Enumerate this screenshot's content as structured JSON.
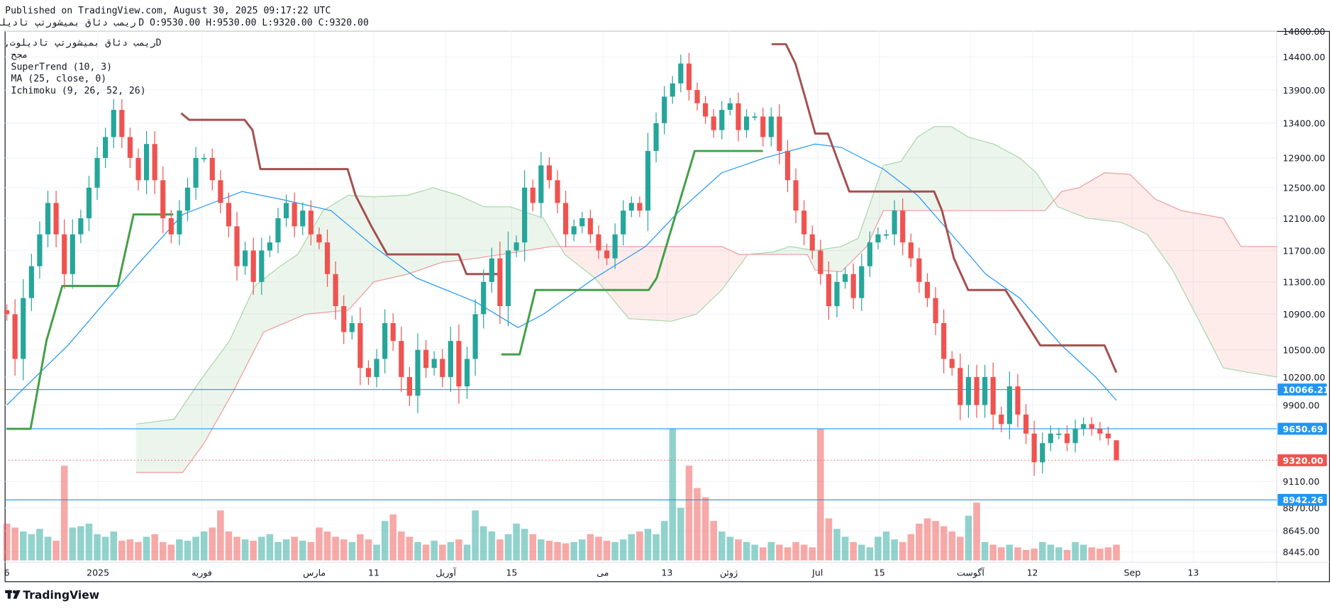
{
  "header": {
    "published": "Published on TradingView.com, August 30, 2025 09:17:22 UTC",
    "symbol": "ريمب دئاق بميشورتپ تاديلوت",
    "ohlc": "D O:9530.00 H:9530.00 L:9320.00 C:9320.00"
  },
  "legend": {
    "title": "ريمب دئاق بميشورتپ تاديلوت, 1D",
    "subtitle": "مجح",
    "supertrend": "SuperTrend (10, 3)",
    "ma": "MA (25, close, 0)",
    "ichimoku": "Ichimoku (9, 26, 52, 26)"
  },
  "branding": {
    "logo": "TradingView"
  },
  "colors": {
    "up": "#26a69a",
    "down": "#ef5350",
    "supertrend_up": "#43a047",
    "supertrend_down": "#a5504f",
    "ma": "#2196f3",
    "level": "#2196f3",
    "last_price": "#ef5350"
  },
  "chart_data": {
    "type": "candlestick",
    "interval": "1D",
    "last_bar": {
      "open": 9530,
      "high": 9530,
      "low": 9320,
      "close": 9320
    },
    "y_ticks": [
      "14800.00",
      "14400.00",
      "13900.00",
      "13400.00",
      "12900.00",
      "12500.00",
      "12100.00",
      "11700.00",
      "11300.00",
      "10900.00",
      "10500.00",
      "10200.00",
      "9900.00",
      "9110.00",
      "8870.00",
      "8645.00",
      "8445.00"
    ],
    "x_ticks": [
      {
        "label": "6",
        "bar": 0
      },
      {
        "label": "2025",
        "bar": 11.5
      },
      {
        "label": "فوریه",
        "bar": 24.6
      },
      {
        "label": "مارس",
        "bar": 38.8
      },
      {
        "label": "11",
        "bar": 46.3
      },
      {
        "label": "آوریل",
        "bar": 55.4
      },
      {
        "label": "15",
        "bar": 63.7
      },
      {
        "label": "می",
        "bar": 75.2
      },
      {
        "label": "13",
        "bar": 83.3
      },
      {
        "label": "ژوئن",
        "bar": 91.1
      },
      {
        "label": "Jul",
        "bar": 102.3
      },
      {
        "label": "15",
        "bar": 110.1
      },
      {
        "label": "آگوست",
        "bar": 121.6
      },
      {
        "label": "12",
        "bar": 129.4
      },
      {
        "label": "Sep",
        "bar": 142
      },
      {
        "label": "13",
        "bar": 149.7
      }
    ],
    "close": [
      10900,
      10400,
      11100,
      11500,
      11900,
      12300,
      11900,
      11400,
      11900,
      12100,
      12500,
      12900,
      13200,
      13600,
      13200,
      12900,
      12600,
      13100,
      12600,
      12100,
      11900,
      12200,
      12500,
      12900,
      12900,
      12600,
      12300,
      12000,
      11500,
      11700,
      11300,
      11700,
      11800,
      12100,
      12300,
      12000,
      12200,
      11900,
      11800,
      11400,
      11000,
      10700,
      10800,
      10300,
      10200,
      10400,
      10800,
      10600,
      10200,
      10000,
      10500,
      10300,
      10400,
      10200,
      10600,
      10100,
      10400,
      10900,
      11300,
      11600,
      11000,
      11700,
      11800,
      12500,
      12300,
      12800,
      12600,
      12300,
      11900,
      12000,
      12100,
      11900,
      11700,
      11600,
      11900,
      12200,
      12300,
      12200,
      13000,
      13400,
      13800,
      14000,
      14300,
      13900,
      13700,
      13500,
      13300,
      13600,
      13700,
      13300,
      13500,
      13500,
      13200,
      13500,
      13000,
      12600,
      12200,
      11900,
      11700,
      11400,
      11000,
      11300,
      11400,
      11100,
      11500,
      11800,
      11900,
      11900,
      12200,
      11800,
      11600,
      11300,
      11100,
      10800,
      10400,
      10300,
      9900,
      10200,
      9900,
      10200,
      9800,
      9700,
      10100,
      9800,
      9600,
      9300,
      9500,
      9600,
      9600,
      9500,
      9650,
      9700,
      9650,
      9600,
      9550,
      9320
    ],
    "first_open": 10950,
    "volume": [
      28,
      25,
      22,
      20,
      24,
      18,
      15,
      72,
      25,
      26,
      28,
      20,
      18,
      22,
      15,
      16,
      14,
      18,
      20,
      14,
      12,
      16,
      15,
      18,
      22,
      25,
      38,
      22,
      18,
      16,
      15,
      18,
      20,
      14,
      16,
      18,
      15,
      14,
      25,
      22,
      18,
      16,
      14,
      20,
      16,
      12,
      30,
      35,
      22,
      18,
      14,
      12,
      15,
      12,
      14,
      16,
      12,
      38,
      26,
      22,
      16,
      20,
      28,
      24,
      20,
      16,
      15,
      14,
      13,
      14,
      16,
      20,
      18,
      15,
      14,
      16,
      20,
      22,
      24,
      20,
      30,
      100,
      40,
      72,
      55,
      48,
      30,
      22,
      18,
      16,
      14,
      12,
      10,
      14,
      12,
      10,
      14,
      12,
      10,
      100,
      32,
      24,
      18,
      14,
      12,
      10,
      18,
      22,
      16,
      14,
      20,
      28,
      32,
      30,
      26,
      22,
      18,
      34,
      44,
      14,
      12,
      10,
      12,
      10,
      8,
      9,
      14,
      12,
      10,
      8,
      14,
      12,
      10,
      9,
      10,
      12
    ],
    "supertrend": [
      {
        "trend": "up",
        "points": [
          [
            0,
            9650
          ],
          [
            3,
            9650
          ],
          [
            5,
            10600
          ],
          [
            7,
            11250
          ],
          [
            14,
            11250
          ],
          [
            16,
            12150
          ],
          [
            21,
            12150
          ]
        ]
      },
      {
        "trend": "down",
        "points": [
          [
            22,
            13550
          ],
          [
            23,
            13450
          ],
          [
            30,
            13450
          ],
          [
            31,
            13300
          ],
          [
            32,
            12750
          ],
          [
            43,
            12750
          ],
          [
            44,
            12400
          ],
          [
            46,
            12000
          ],
          [
            48,
            11650
          ],
          [
            57,
            11650
          ],
          [
            58,
            11400
          ],
          [
            62,
            11400
          ]
        ]
      },
      {
        "trend": "up",
        "points": [
          [
            62.4,
            10450
          ],
          [
            64.7,
            10450
          ],
          [
            66.7,
            11200
          ],
          [
            81,
            11200
          ],
          [
            82,
            11350
          ],
          [
            86.8,
            13000
          ],
          [
            95.4,
            13000
          ]
        ]
      },
      {
        "trend": "down",
        "points": [
          [
            96.5,
            14600
          ],
          [
            98.3,
            14600
          ],
          [
            99.5,
            14300
          ],
          [
            100.7,
            13800
          ],
          [
            102,
            13250
          ],
          [
            103.6,
            13250
          ],
          [
            106.3,
            12450
          ],
          [
            117,
            12450
          ],
          [
            118,
            12200
          ],
          [
            119.5,
            11600
          ],
          [
            121.3,
            11200
          ],
          [
            126,
            11200
          ],
          [
            130.4,
            10550
          ],
          [
            138.5,
            10550
          ],
          [
            140,
            10250
          ]
        ]
      }
    ],
    "ma": [
      [
        0,
        9900
      ],
      [
        7.7,
        10550
      ],
      [
        16.3,
        11500
      ],
      [
        22.2,
        12150
      ],
      [
        29.7,
        12450
      ],
      [
        34.5,
        12350
      ],
      [
        40.9,
        12200
      ],
      [
        46.3,
        11750
      ],
      [
        51.7,
        11350
      ],
      [
        59.2,
        11050
      ],
      [
        64.5,
        10750
      ],
      [
        67.7,
        10900
      ],
      [
        74.2,
        11350
      ],
      [
        80.6,
        11750
      ],
      [
        84.9,
        12200
      ],
      [
        90.2,
        12700
      ],
      [
        95.6,
        12900
      ],
      [
        102,
        13100
      ],
      [
        105.3,
        13050
      ],
      [
        110.6,
        12750
      ],
      [
        114.9,
        12400
      ],
      [
        119.2,
        11900
      ],
      [
        123.5,
        11400
      ],
      [
        127.8,
        11100
      ],
      [
        133.1,
        10550
      ],
      [
        137.4,
        10200
      ],
      [
        140,
        9950
      ]
    ],
    "ichimoku_span_a": [
      [
        16.3,
        9700
      ],
      [
        21.1,
        9750
      ],
      [
        24.3,
        10150
      ],
      [
        28.1,
        10600
      ],
      [
        31.3,
        11250
      ],
      [
        34.5,
        11500
      ],
      [
        36.7,
        11650
      ],
      [
        39.9,
        12200
      ],
      [
        43.1,
        12400
      ],
      [
        46.3,
        12380
      ],
      [
        50.6,
        12400
      ],
      [
        53.8,
        12500
      ],
      [
        57,
        12400
      ],
      [
        60.2,
        12250
      ],
      [
        63.5,
        12250
      ],
      [
        67.7,
        12100
      ],
      [
        70.4,
        11650
      ],
      [
        74.2,
        11350
      ],
      [
        78.5,
        10850
      ],
      [
        83.8,
        10820
      ],
      [
        87,
        10900
      ],
      [
        90.2,
        11200
      ],
      [
        93.5,
        11650
      ],
      [
        96.7,
        11680
      ],
      [
        98.8,
        11750
      ],
      [
        102,
        11700
      ],
      [
        105.3,
        11750
      ],
      [
        107.4,
        11850
      ],
      [
        110.6,
        12800
      ],
      [
        112.8,
        12850
      ],
      [
        114.9,
        13200
      ],
      [
        117,
        13350
      ],
      [
        119.2,
        13350
      ],
      [
        121.3,
        13200
      ],
      [
        124.5,
        13100
      ],
      [
        127.8,
        12900
      ],
      [
        129.9,
        12700
      ],
      [
        132.6,
        12250
      ],
      [
        136.3,
        12100
      ],
      [
        140.6,
        12050
      ],
      [
        143.9,
        11900
      ],
      [
        147.1,
        11450
      ],
      [
        150.3,
        10850
      ],
      [
        153.5,
        10300
      ],
      [
        156.7,
        10250
      ],
      [
        160.3,
        10200
      ]
    ],
    "ichimoku_span_b": [
      [
        16.3,
        9200
      ],
      [
        22.2,
        9200
      ],
      [
        24.9,
        9500
      ],
      [
        28.6,
        10050
      ],
      [
        32.4,
        10700
      ],
      [
        37.7,
        10900
      ],
      [
        43.1,
        10950
      ],
      [
        46.3,
        11300
      ],
      [
        50.6,
        11400
      ],
      [
        54.9,
        11550
      ],
      [
        59.2,
        11600
      ],
      [
        68.8,
        11750
      ],
      [
        90.2,
        11750
      ],
      [
        92.4,
        11650
      ],
      [
        101,
        11650
      ],
      [
        102,
        11450
      ],
      [
        105.3,
        11430
      ],
      [
        108.5,
        11750
      ],
      [
        110.6,
        12200
      ],
      [
        131,
        12200
      ],
      [
        133.1,
        12450
      ],
      [
        135.3,
        12500
      ],
      [
        138.5,
        12700
      ],
      [
        141.7,
        12680
      ],
      [
        144.9,
        12350
      ],
      [
        148.2,
        12200
      ],
      [
        153.5,
        12100
      ],
      [
        155.7,
        11750
      ],
      [
        160.3,
        11750
      ]
    ],
    "levels": [
      {
        "label": "10066.21",
        "value": 10066.21,
        "style": "solid"
      },
      {
        "label": "9650.69",
        "value": 9650.69,
        "style": "solid"
      },
      {
        "label": "8942.26",
        "value": 8942.26,
        "style": "solid"
      }
    ],
    "last_price": {
      "label": "9320.00",
      "value": 9320
    }
  }
}
